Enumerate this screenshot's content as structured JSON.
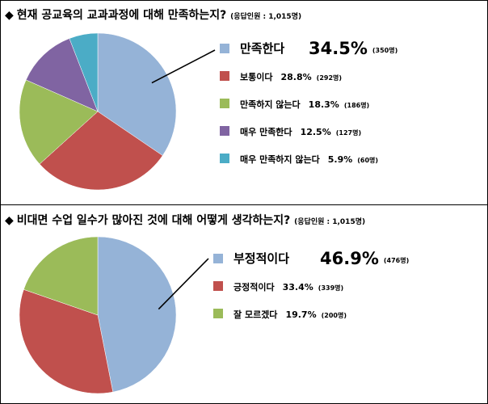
{
  "questions": [
    {
      "title": "현재 공교육의 교과과정에 대해 만족하는지?",
      "note": "(응답인원 : 1,015명)"
    },
    {
      "title": "비대면 수업 일수가 많아진 것에 대해 어떻게 생각하는지?",
      "note": "(응답인원 : 1,015명)"
    }
  ],
  "chart_data": [
    {
      "type": "pie",
      "title": "현재 공교육의 교과과정에 대해 만족하는지?",
      "slices": [
        {
          "label": "만족한다",
          "value": 34.5,
          "value_text": "34.5%",
          "count": "(350명)",
          "color": "#95b3d7",
          "highlight": true
        },
        {
          "label": "보통이다",
          "value": 28.8,
          "value_text": "28.8%",
          "count": "(292명)",
          "color": "#c0504d"
        },
        {
          "label": "만족하지 않는다",
          "value": 18.3,
          "value_text": "18.3%",
          "count": "(186명)",
          "color": "#9bbb59"
        },
        {
          "label": "매우 만족한다",
          "value": 12.5,
          "value_text": "12.5%",
          "count": "(127명)",
          "color": "#8064a2"
        },
        {
          "label": "매우 만족하지 않는다",
          "value": 5.9,
          "value_text": "5.9%",
          "count": "(60명)",
          "color": "#4bacc6"
        }
      ],
      "legend": "right"
    },
    {
      "type": "pie",
      "title": "비대면 수업 일수가 많아진 것에 대해 어떻게 생각하는지?",
      "slices": [
        {
          "label": "부정적이다",
          "value": 46.9,
          "value_text": "46.9%",
          "count": "(476명)",
          "color": "#95b3d7",
          "highlight": true
        },
        {
          "label": "긍정적이다",
          "value": 33.4,
          "value_text": "33.4%",
          "count": "(339명)",
          "color": "#c0504d"
        },
        {
          "label": "잘 모르겠다",
          "value": 19.7,
          "value_text": "19.7%",
          "count": "(200명)",
          "color": "#9bbb59"
        }
      ],
      "legend": "right"
    }
  ]
}
